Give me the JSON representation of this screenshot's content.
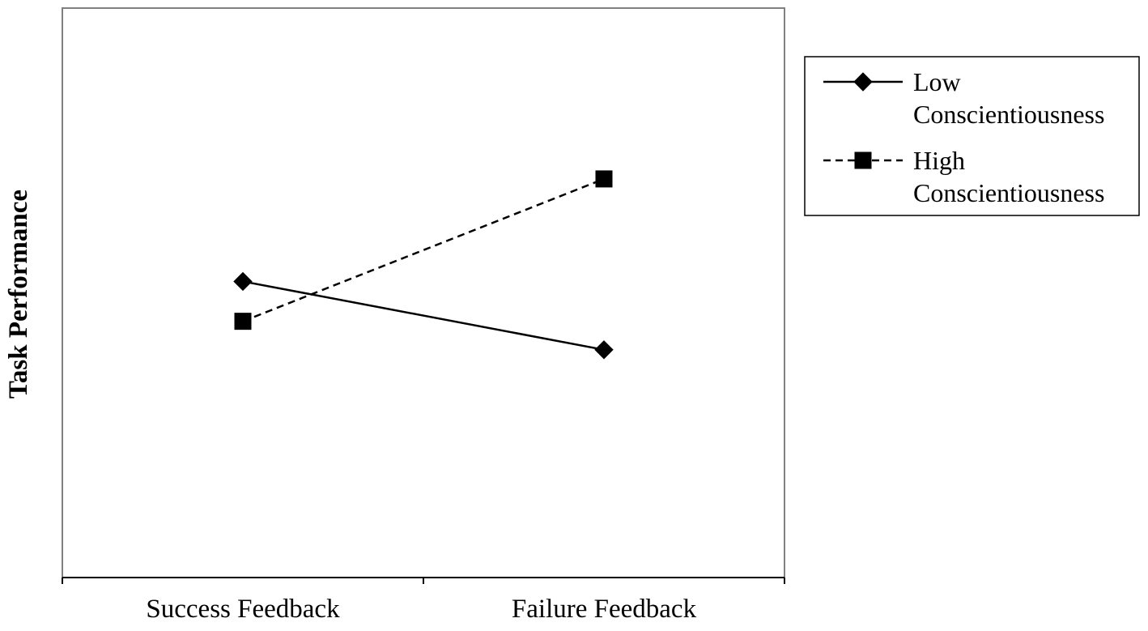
{
  "chart_data": {
    "type": "line",
    "title": "",
    "xlabel": "",
    "ylabel": "Task Performance",
    "categories": [
      "Success Feedback",
      "Failure Feedback"
    ],
    "ylim": [
      0,
      100
    ],
    "y_ticks_shown": false,
    "grid": false,
    "legend_position": "right",
    "series": [
      {
        "name": "Low Conscientiousness",
        "name_lines": [
          "Low",
          "Conscientiousness"
        ],
        "values": [
          52,
          40
        ],
        "marker": "diamond",
        "line_style": "solid",
        "color": "#000000"
      },
      {
        "name": "High Conscientiousness",
        "name_lines": [
          "High",
          "Conscientiousness"
        ],
        "values": [
          45,
          70
        ],
        "marker": "square",
        "line_style": "dashed",
        "color": "#000000"
      }
    ]
  }
}
